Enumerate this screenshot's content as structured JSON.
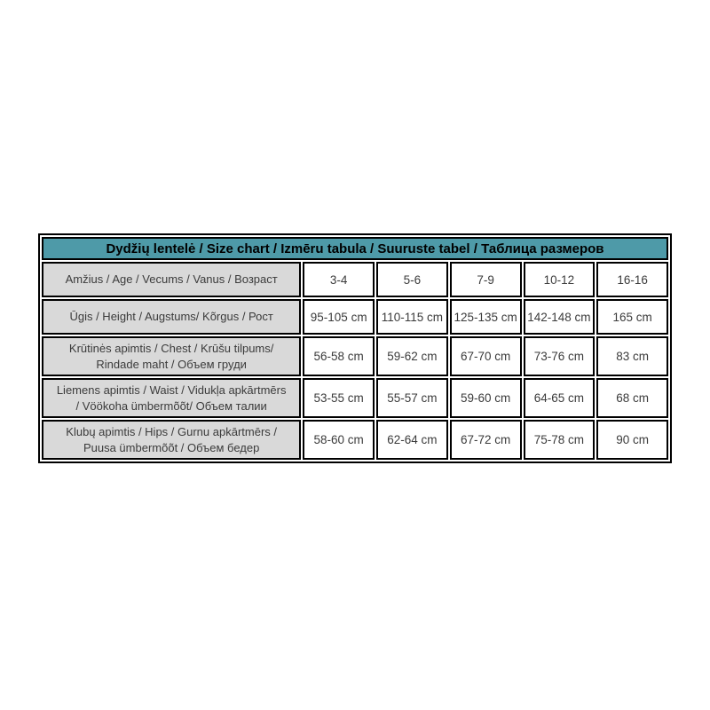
{
  "page": {
    "background": "#ffffff"
  },
  "size_chart": {
    "title": "Dydžių lentelė / Size chart / Izmēru tabula / Suuruste tabel / Таблица размеров",
    "colors": {
      "header_bg": "#4e9aa8",
      "label_bg": "#d9d9d9",
      "value_bg": "#ffffff",
      "border": "#000000",
      "text": "#3b3b3b"
    },
    "rows": [
      {
        "label": "Amžius / Age / Vecums / Vanus / Возраст",
        "values": [
          "3-4",
          "5-6",
          "7-9",
          "10-12",
          "16-16"
        ]
      },
      {
        "label": "Ūgis / Height / Augstums/ Kõrgus / Рост",
        "values": [
          "95-105 cm",
          "110-115 cm",
          "125-135 cm",
          "142-148 cm",
          "165 cm"
        ]
      },
      {
        "label": "Krūtinės apimtis / Chest / Krūšu tilpums/ Rindade maht / Объем груди",
        "values": [
          "56-58 cm",
          "59-62 cm",
          "67-70 cm",
          "73-76 cm",
          "83 cm"
        ]
      },
      {
        "label": "Liemens apimtis / Waist / Vidukļa apkārtmērs / Vöökoha ümbermõõt/ Объем талии",
        "values": [
          "53-55 cm",
          "55-57 cm",
          "59-60 cm",
          "64-65 cm",
          "68 cm"
        ]
      },
      {
        "label": "Klubų apimtis / Hips / Gurnu apkārtmērs / Puusa ümbermõõt / Объем бедер",
        "values": [
          "58-60 cm",
          "62-64 cm",
          "67-72 cm",
          "75-78 cm",
          "90 cm"
        ]
      }
    ]
  }
}
